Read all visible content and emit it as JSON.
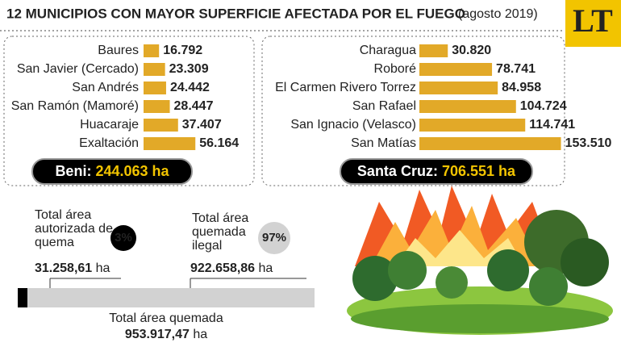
{
  "header": {
    "title": "12 MUNICIPIOS CON MAYOR SUPERFICIE AFECTADA POR EL FUEGO",
    "subtitle": "(agosto 2019)",
    "logo": "LT"
  },
  "chart_data": [
    {
      "type": "bar",
      "categories": [
        "Baures",
        "San Javier (Cercado)",
        "San Andrés",
        "San Ramón (Mamoré)",
        "Huacaraje",
        "Exaltación"
      ],
      "values": [
        16792,
        23309,
        24442,
        28447,
        37407,
        56164
      ],
      "value_labels": [
        "16.792",
        "23.309",
        "24.442",
        "28.447",
        "37.407",
        "56.164"
      ],
      "color": "#e2a928",
      "xlim": [
        0,
        160000
      ],
      "total_name": "Beni:",
      "total": 244063,
      "total_label": "244.063",
      "unit": "ha"
    },
    {
      "type": "bar",
      "categories": [
        "Charagua",
        "Roboré",
        "El Carmen Rivero Torrez",
        "San Rafael",
        "San Ignacio (Velasco)",
        "San Matías"
      ],
      "values": [
        30820,
        78741,
        84958,
        104724,
        114741,
        153510
      ],
      "value_labels": [
        "30.820",
        "78.741",
        "84.958",
        "104.724",
        "114.741",
        "153.510"
      ],
      "color": "#e2a928",
      "xlim": [
        0,
        160000
      ],
      "total_name": "Santa Cruz:",
      "total": 706551,
      "total_label": "706.551",
      "unit": "ha"
    },
    {
      "type": "stacked-bar",
      "series": [
        {
          "name": "Total área autorizada de quema",
          "color": "#000000",
          "values": [
            31258.61
          ],
          "value_labels": [
            "31.258,61"
          ],
          "share": 3,
          "share_label": "3%"
        },
        {
          "name": "Total área quemada ilegal",
          "color": "#d2d2d2",
          "values": [
            922658.86
          ],
          "value_labels": [
            "922.658,86"
          ],
          "share": 97,
          "share_label": "97%"
        }
      ],
      "xlim": [
        0,
        953917.47
      ],
      "total_name": "Total área quemada",
      "total": 953917.47,
      "total_label": "953.917,47",
      "unit": "ha"
    }
  ]
}
